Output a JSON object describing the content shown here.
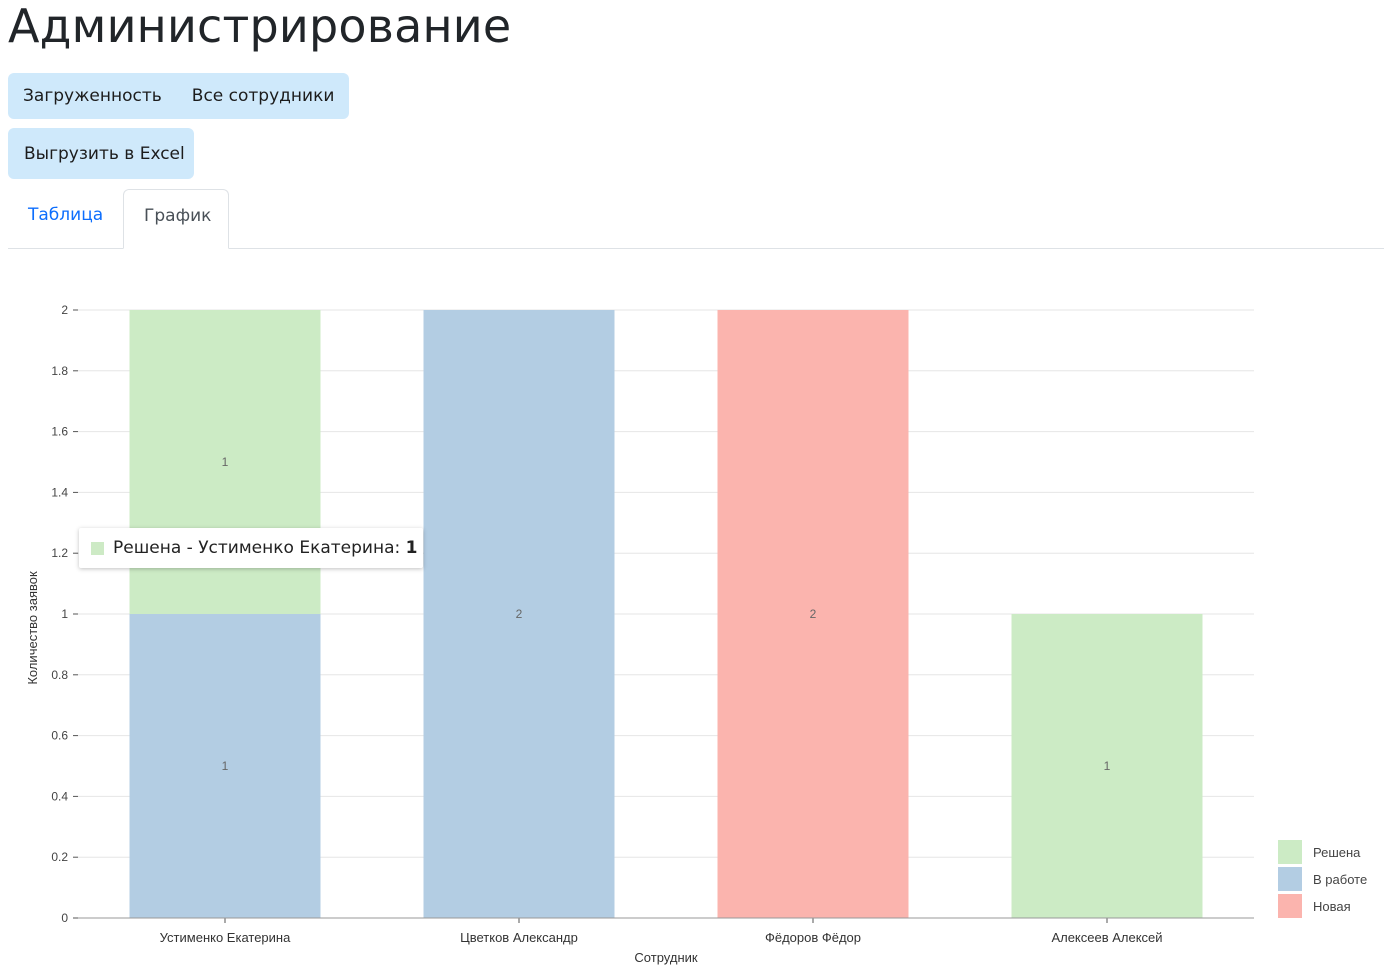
{
  "header": {
    "title": "Администрирование"
  },
  "toolbar": {
    "load_label": "Загруженность",
    "all_label": "Все сотрудники",
    "export_label": "Выгрузить в Excel"
  },
  "tabs": [
    {
      "label": "Таблица",
      "active": false
    },
    {
      "label": "График",
      "active": true
    }
  ],
  "tooltip": {
    "prefix": "Решена - Устименко Екатерина: ",
    "value": "1"
  },
  "chart_data": {
    "type": "bar",
    "stacked": true,
    "categories": [
      "Устименко Екатерина",
      "Цветков Александр",
      "Фёдоров Фёдор",
      "Алексеев Алексей"
    ],
    "series": [
      {
        "name": "В работе",
        "color": "#b3cde3",
        "values": [
          1,
          2,
          0,
          0
        ]
      },
      {
        "name": "Решена",
        "color": "#ccebc5",
        "values": [
          1,
          0,
          0,
          1
        ]
      },
      {
        "name": "Новая",
        "color": "#fbb4ae",
        "values": [
          0,
          0,
          2,
          0
        ]
      }
    ],
    "legend_order": [
      "Решена",
      "В работе",
      "Новая"
    ],
    "legend_position": "bottom-right",
    "xlabel": "Сотрудник",
    "ylabel": "Количество заявок",
    "ylim": [
      0,
      2
    ],
    "yticks": [
      0,
      0.2,
      0.4,
      0.6,
      0.8,
      1,
      1.2,
      1.4,
      1.6,
      1.8,
      2
    ],
    "grid": true
  }
}
